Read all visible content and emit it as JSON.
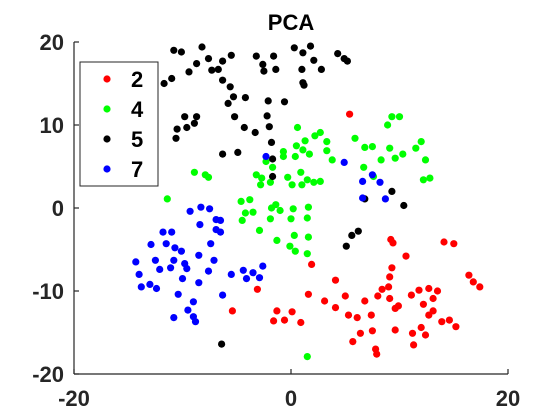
{
  "chart_data": {
    "type": "scatter",
    "title": "PCA",
    "xlabel": "",
    "ylabel": "",
    "xlim": [
      -20,
      20
    ],
    "ylim": [
      -20,
      20
    ],
    "xticks": [
      "-20",
      "0",
      "20"
    ],
    "yticks": [
      "20",
      "10",
      "0",
      "-10",
      "-20"
    ],
    "grid": false,
    "legend_position": "top-left",
    "colors": {
      "2": "#ff0000",
      "4": "#00ff00",
      "5": "#000000",
      "7": "#0000ff"
    },
    "series": [
      {
        "name": "2",
        "points": [
          [
            5.4,
            11.3
          ],
          [
            1.9,
            -6.8
          ],
          [
            1.6,
            -10.4
          ],
          [
            0.1,
            -12.5
          ],
          [
            -0.6,
            -13.5
          ],
          [
            -1.3,
            -12.4
          ],
          [
            -1.6,
            -13.6
          ],
          [
            0.9,
            -13.8
          ],
          [
            3.1,
            -11.2
          ],
          [
            4.1,
            -12.0
          ],
          [
            4.1,
            -8.7
          ],
          [
            5.0,
            -10.6
          ],
          [
            5.3,
            -12.9
          ],
          [
            6.1,
            -13.2
          ],
          [
            5.7,
            -16.1
          ],
          [
            6.4,
            -15.1
          ],
          [
            6.8,
            -11.2
          ],
          [
            7.4,
            -12.9
          ],
          [
            7.8,
            -17.0
          ],
          [
            7.9,
            -17.6
          ],
          [
            7.5,
            -14.8
          ],
          [
            8.0,
            -10.6
          ],
          [
            8.4,
            -9.8
          ],
          [
            9.0,
            -9.5
          ],
          [
            9.1,
            -10.9
          ],
          [
            9.6,
            -12.1
          ],
          [
            9.9,
            -11.8
          ],
          [
            9.6,
            -14.7
          ],
          [
            9.3,
            -7.2
          ],
          [
            9.1,
            -8.3
          ],
          [
            9.2,
            -3.8
          ],
          [
            9.4,
            -4.2
          ],
          [
            10.6,
            -5.8
          ],
          [
            11.1,
            -10.5
          ],
          [
            11.8,
            -9.9
          ],
          [
            12.7,
            -9.7
          ],
          [
            12.2,
            -11.6
          ],
          [
            12.0,
            -14.4
          ],
          [
            11.2,
            -15.1
          ],
          [
            11.3,
            -16.5
          ],
          [
            12.4,
            -15.3
          ],
          [
            12.7,
            -12.9
          ],
          [
            13.1,
            -12.4
          ],
          [
            13.1,
            -10.9
          ],
          [
            13.5,
            -10.0
          ],
          [
            13.9,
            -13.7
          ],
          [
            14.6,
            -13.5
          ],
          [
            15.2,
            -14.3
          ],
          [
            14.1,
            -4.1
          ],
          [
            15.0,
            -4.3
          ],
          [
            16.4,
            -8.1
          ],
          [
            16.8,
            -8.9
          ],
          [
            17.4,
            -9.5
          ],
          [
            -5.4,
            -12.4
          ],
          [
            -3.1,
            -9.8
          ]
        ]
      },
      {
        "name": "4",
        "points": [
          [
            -11.4,
            1.1
          ],
          [
            -8.9,
            4.3
          ],
          [
            -7.9,
            4.0
          ],
          [
            -7.6,
            3.7
          ],
          [
            -4.6,
            0.8
          ],
          [
            -4.2,
            -0.6
          ],
          [
            -3.8,
            1.0
          ],
          [
            -4.5,
            -1.5
          ],
          [
            -3.5,
            -0.5
          ],
          [
            -2.9,
            -2.7
          ],
          [
            -1.4,
            0.4
          ],
          [
            -1.0,
            -0.3
          ],
          [
            -1.9,
            -1.3
          ],
          [
            -1.8,
            0.0
          ],
          [
            -2.8,
            2.8
          ],
          [
            -2.7,
            3.6
          ],
          [
            -3.2,
            4.0
          ],
          [
            -2.3,
            5.6
          ],
          [
            -1.7,
            4.9
          ],
          [
            -1.9,
            3.1
          ],
          [
            -0.3,
            3.7
          ],
          [
            0.1,
            2.8
          ],
          [
            -0.7,
            6.2
          ],
          [
            -0.7,
            6.8
          ],
          [
            0.4,
            6.2
          ],
          [
            0.5,
            7.5
          ],
          [
            0.6,
            9.7
          ],
          [
            0.9,
            4.3
          ],
          [
            1.0,
            2.8
          ],
          [
            1.5,
            3.4
          ],
          [
            2.2,
            8.7
          ],
          [
            2.7,
            9.1
          ],
          [
            1.3,
            8.1
          ],
          [
            1.1,
            7.0
          ],
          [
            1.7,
            6.5
          ],
          [
            3.3,
            6.9
          ],
          [
            3.3,
            8.0
          ],
          [
            3.8,
            5.8
          ],
          [
            2.1,
            3.1
          ],
          [
            2.7,
            3.2
          ],
          [
            -1.3,
            -3.9
          ],
          [
            -0.1,
            -4.6
          ],
          [
            0.4,
            -5.2
          ],
          [
            0.3,
            -3.3
          ],
          [
            0.0,
            -1.3
          ],
          [
            0.2,
            -0.1
          ],
          [
            1.5,
            -1.2
          ],
          [
            1.6,
            0.1
          ],
          [
            1.6,
            -3.5
          ],
          [
            1.5,
            -5.5
          ],
          [
            1.5,
            -17.9
          ],
          [
            5.9,
            8.4
          ],
          [
            6.8,
            7.3
          ],
          [
            6.7,
            4.9
          ],
          [
            7.6,
            3.8
          ],
          [
            7.5,
            7.4
          ],
          [
            8.3,
            5.8
          ],
          [
            9.1,
            7.2
          ],
          [
            8.9,
            10.0
          ],
          [
            9.3,
            11.0
          ],
          [
            9.6,
            6.0
          ],
          [
            10.3,
            6.5
          ],
          [
            10.0,
            11.0
          ],
          [
            11.5,
            7.2
          ],
          [
            12.0,
            8.0
          ],
          [
            12.4,
            5.8
          ],
          [
            12.2,
            3.4
          ],
          [
            12.8,
            3.6
          ]
        ]
      },
      {
        "name": "5",
        "points": [
          [
            -11.7,
            15.0
          ],
          [
            -11.0,
            15.6
          ],
          [
            -10.8,
            19.0
          ],
          [
            -10.1,
            18.8
          ],
          [
            -9.4,
            16.4
          ],
          [
            -8.7,
            17.4
          ],
          [
            -8.2,
            19.4
          ],
          [
            -7.6,
            18.0
          ],
          [
            -7.3,
            16.6
          ],
          [
            -6.7,
            16.7
          ],
          [
            -6.3,
            17.7
          ],
          [
            -6.3,
            15.4
          ],
          [
            -5.6,
            14.6
          ],
          [
            -5.3,
            13.4
          ],
          [
            -5.8,
            12.6
          ],
          [
            -4.2,
            13.3
          ],
          [
            -5.5,
            18.4
          ],
          [
            -3.2,
            18.3
          ],
          [
            -2.6,
            17.3
          ],
          [
            -2.5,
            16.5
          ],
          [
            -1.4,
            16.7
          ],
          [
            -1.6,
            18.3
          ],
          [
            0.3,
            19.3
          ],
          [
            1.1,
            18.7
          ],
          [
            1.8,
            19.5
          ],
          [
            2.1,
            17.8
          ],
          [
            1.0,
            16.7
          ],
          [
            2.8,
            16.7
          ],
          [
            1.1,
            15.1
          ],
          [
            1.2,
            14.8
          ],
          [
            -2.1,
            12.9
          ],
          [
            -0.6,
            12.8
          ],
          [
            -2.2,
            11.1
          ],
          [
            -3.3,
            9.1
          ],
          [
            -4.3,
            9.7
          ],
          [
            -4.9,
            6.7
          ],
          [
            -6.3,
            6.5
          ],
          [
            -5.2,
            11.0
          ],
          [
            -2.0,
            9.8
          ],
          [
            -1.8,
            7.9
          ],
          [
            -1.7,
            5.9
          ],
          [
            -1.7,
            3.8
          ],
          [
            -8.9,
            10.2
          ],
          [
            -9.8,
            11.0
          ],
          [
            -10.5,
            9.5
          ],
          [
            -10.6,
            8.4
          ],
          [
            -9.6,
            9.7
          ],
          [
            -8.7,
            11.0
          ],
          [
            4.3,
            18.6
          ],
          [
            4.9,
            18.0
          ],
          [
            5.2,
            17.7
          ],
          [
            6.8,
            1.1
          ],
          [
            9.3,
            2.0
          ],
          [
            10.4,
            0.3
          ],
          [
            5.6,
            -3.3
          ],
          [
            6.2,
            -2.8
          ],
          [
            5.1,
            -4.6
          ],
          [
            -6.4,
            -16.4
          ]
        ]
      },
      {
        "name": "7",
        "points": [
          [
            -14.3,
            -6.5
          ],
          [
            -14.0,
            -8.0
          ],
          [
            -13.8,
            -9.5
          ],
          [
            -13.0,
            -9.2
          ],
          [
            -12.9,
            -4.4
          ],
          [
            -12.5,
            -6.3
          ],
          [
            -12.4,
            -9.7
          ],
          [
            -12.1,
            -7.4
          ],
          [
            -11.8,
            -2.9
          ],
          [
            -11.5,
            -4.3
          ],
          [
            -11.1,
            -7.2
          ],
          [
            -10.8,
            -6.3
          ],
          [
            -10.7,
            -4.8
          ],
          [
            -10.8,
            -13.2
          ],
          [
            -10.4,
            -10.4
          ],
          [
            -10.0,
            -8.5
          ],
          [
            -9.6,
            -7.3
          ],
          [
            -9.5,
            -12.3
          ],
          [
            -9.0,
            -13.1
          ],
          [
            -9.0,
            -11.3
          ],
          [
            -8.8,
            -13.7
          ],
          [
            -8.5,
            -9.0
          ],
          [
            -8.4,
            -2.0
          ],
          [
            -8.3,
            0.1
          ],
          [
            -7.5,
            -0.1
          ],
          [
            -7.6,
            -7.6
          ],
          [
            -7.1,
            -6.3
          ],
          [
            -7.4,
            -4.3
          ],
          [
            -6.9,
            -1.4
          ],
          [
            -6.5,
            -1.5
          ],
          [
            -6.3,
            -10.5
          ],
          [
            -5.5,
            -8.0
          ],
          [
            -4.4,
            -7.5
          ],
          [
            -4.1,
            -8.5
          ],
          [
            -3.5,
            -7.8
          ],
          [
            -2.9,
            -8.4
          ],
          [
            -2.6,
            -7.0
          ],
          [
            -6.9,
            -2.6
          ],
          [
            -6.5,
            -2.9
          ],
          [
            -11.0,
            -2.9
          ],
          [
            -9.3,
            -0.4
          ],
          [
            -9.8,
            -6.7
          ],
          [
            -8.5,
            -5.7
          ],
          [
            -10.1,
            -5.2
          ],
          [
            -2.3,
            6.2
          ],
          [
            4.9,
            5.5
          ],
          [
            6.6,
            1.2
          ],
          [
            6.6,
            3.2
          ],
          [
            7.5,
            4.0
          ],
          [
            8.2,
            3.1
          ],
          [
            8.7,
            1.1
          ]
        ]
      }
    ],
    "legend": [
      {
        "label": "2",
        "color": "#ff0000"
      },
      {
        "label": "4",
        "color": "#00ff00"
      },
      {
        "label": "5",
        "color": "#000000"
      },
      {
        "label": "7",
        "color": "#0000ff"
      }
    ]
  }
}
